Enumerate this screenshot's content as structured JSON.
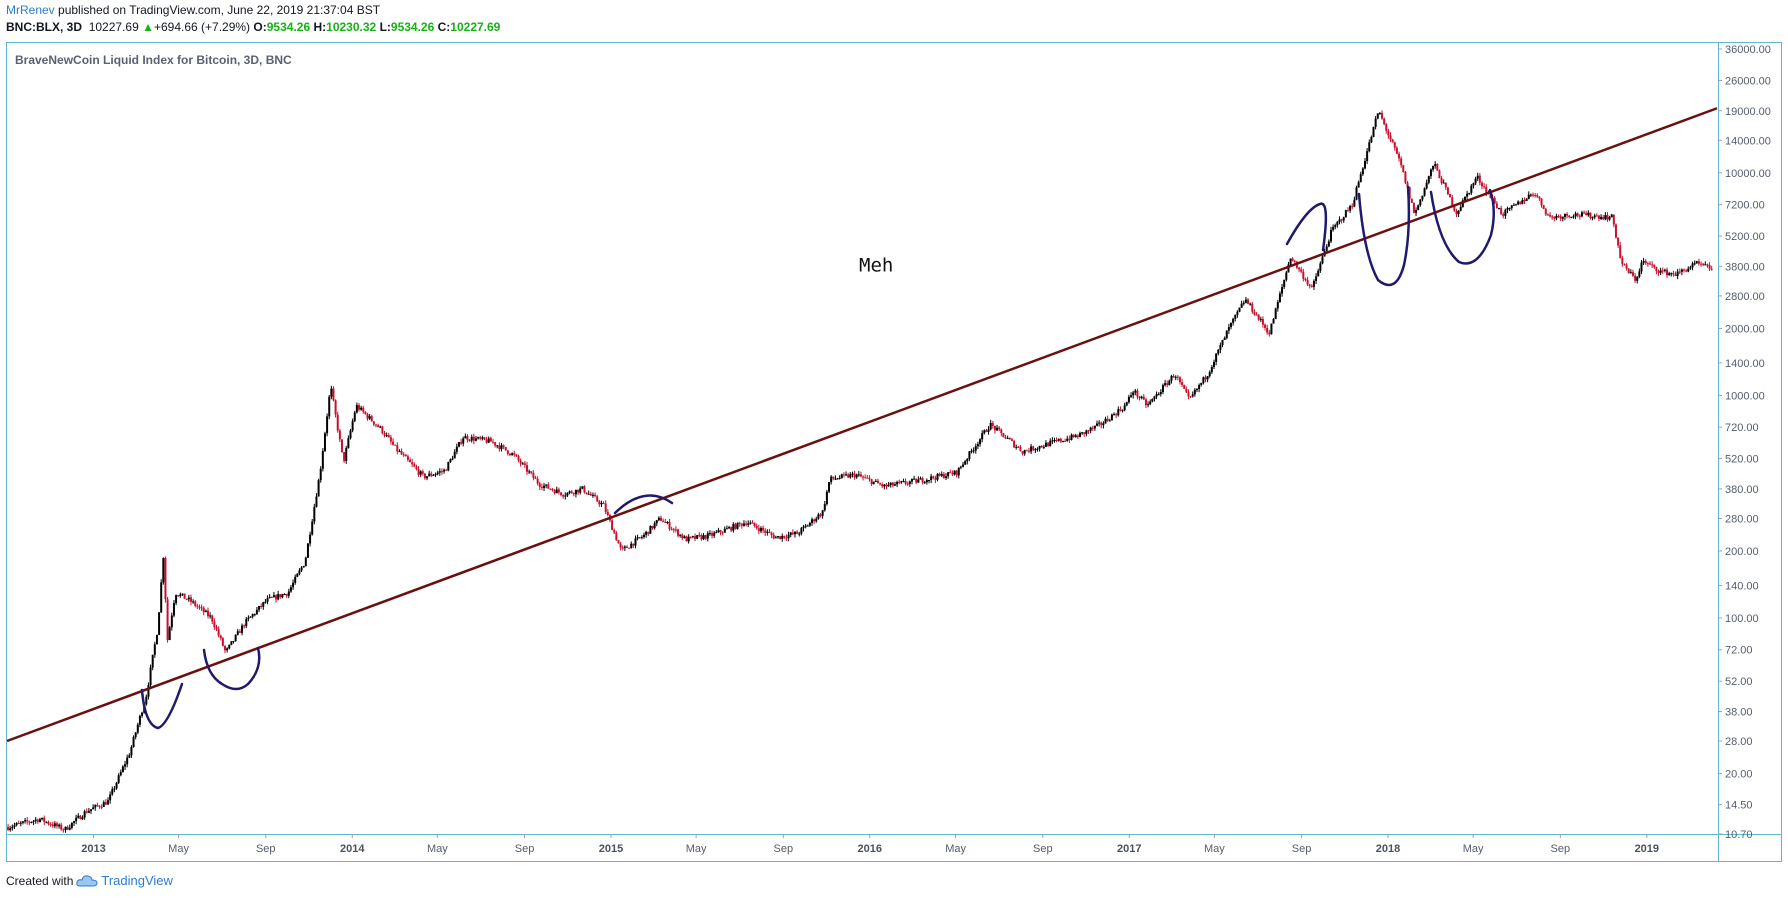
{
  "header": {
    "author": "MrRenev",
    "published": "published on TradingView.com, June 22, 2019 21:37:04 BST",
    "symbol": "BNC:BLX, 3D",
    "last": "10227.69",
    "change": "+694.66 (+7.29%)",
    "open_label": "O:",
    "open": "9534.26",
    "high_label": "H:",
    "high": "10230.32",
    "low_label": "L:",
    "low": "9534.26",
    "close_label": "C:",
    "close": "10227.69"
  },
  "footer": {
    "created_with": "Created with",
    "brand": "TradingView"
  },
  "colors": {
    "up": "#000000",
    "down": "#c8102e",
    "trendline": "#6b1010",
    "annotation": "#1f1a6b",
    "border": "#5fb8cc",
    "positive": "#16b216",
    "brand": "#2e7bcf"
  },
  "chart_data": {
    "type": "line",
    "title": "BraveNewCoin Liquid Index for Bitcoin, 3D, BNC",
    "yscale": "log",
    "ylim": [
      10.7,
      36000
    ],
    "xlim": [
      "2012-09-01",
      "2019-04-10"
    ],
    "y_ticks": [
      "36000.00",
      "26000.00",
      "19000.00",
      "14000.00",
      "10000.00",
      "7200.00",
      "5200.00",
      "3800.00",
      "2800.00",
      "2000.00",
      "1400.00",
      "1000.00",
      "720.00",
      "520.00",
      "380.00",
      "280.00",
      "200.00",
      "140.00",
      "100.00",
      "72.00",
      "52.00",
      "38.00",
      "28.00",
      "20.00",
      "14.50",
      "10.70"
    ],
    "x_ticks": [
      {
        "label": "2013",
        "date": "2013-01-01",
        "year": true
      },
      {
        "label": "May",
        "date": "2013-05-01"
      },
      {
        "label": "Sep",
        "date": "2013-09-01"
      },
      {
        "label": "2014",
        "date": "2014-01-01",
        "year": true
      },
      {
        "label": "May",
        "date": "2014-05-01"
      },
      {
        "label": "Sep",
        "date": "2014-09-01"
      },
      {
        "label": "2015",
        "date": "2015-01-01",
        "year": true
      },
      {
        "label": "May",
        "date": "2015-05-01"
      },
      {
        "label": "Sep",
        "date": "2015-09-01"
      },
      {
        "label": "2016",
        "date": "2016-01-01",
        "year": true
      },
      {
        "label": "May",
        "date": "2016-05-01"
      },
      {
        "label": "Sep",
        "date": "2016-09-01"
      },
      {
        "label": "2017",
        "date": "2017-01-01",
        "year": true
      },
      {
        "label": "May",
        "date": "2017-05-01"
      },
      {
        "label": "Sep",
        "date": "2017-09-01"
      },
      {
        "label": "2018",
        "date": "2018-01-01",
        "year": true
      },
      {
        "label": "May",
        "date": "2018-05-01"
      },
      {
        "label": "Sep",
        "date": "2018-09-01"
      },
      {
        "label": "2019",
        "date": "2019-01-01",
        "year": true
      }
    ],
    "price_path": [
      [
        "2012-09-01",
        11.5
      ],
      [
        "2012-10-15",
        12.5
      ],
      [
        "2012-11-20",
        11.2
      ],
      [
        "2012-12-20",
        13.5
      ],
      [
        "2013-01-20",
        15
      ],
      [
        "2013-02-20",
        25
      ],
      [
        "2013-03-15",
        45
      ],
      [
        "2013-03-31",
        90
      ],
      [
        "2013-04-08",
        190
      ],
      [
        "2013-04-14",
        80
      ],
      [
        "2013-04-25",
        130
      ],
      [
        "2013-05-15",
        120
      ],
      [
        "2013-06-15",
        100
      ],
      [
        "2013-07-05",
        70
      ],
      [
        "2013-08-01",
        95
      ],
      [
        "2013-09-01",
        120
      ],
      [
        "2013-10-01",
        130
      ],
      [
        "2013-10-25",
        180
      ],
      [
        "2013-11-15",
        450
      ],
      [
        "2013-11-30",
        1100
      ],
      [
        "2013-12-18",
        500
      ],
      [
        "2014-01-05",
        900
      ],
      [
        "2014-02-10",
        700
      ],
      [
        "2014-03-01",
        580
      ],
      [
        "2014-04-10",
        430
      ],
      [
        "2014-05-10",
        460
      ],
      [
        "2014-06-05",
        650
      ],
      [
        "2014-07-15",
        620
      ],
      [
        "2014-08-15",
        540
      ],
      [
        "2014-09-20",
        400
      ],
      [
        "2014-10-25",
        360
      ],
      [
        "2014-11-20",
        380
      ],
      [
        "2014-12-20",
        320
      ],
      [
        "2015-01-14",
        200
      ],
      [
        "2015-02-15",
        235
      ],
      [
        "2015-03-10",
        280
      ],
      [
        "2015-04-15",
        225
      ],
      [
        "2015-05-20",
        235
      ],
      [
        "2015-07-10",
        270
      ],
      [
        "2015-08-20",
        230
      ],
      [
        "2015-09-20",
        240
      ],
      [
        "2015-10-25",
        300
      ],
      [
        "2015-11-04",
        420
      ],
      [
        "2015-12-10",
        440
      ],
      [
        "2016-01-20",
        390
      ],
      [
        "2016-03-10",
        415
      ],
      [
        "2016-05-01",
        450
      ],
      [
        "2016-06-17",
        740
      ],
      [
        "2016-08-02",
        560
      ],
      [
        "2016-09-10",
        610
      ],
      [
        "2016-10-20",
        660
      ],
      [
        "2016-11-20",
        740
      ],
      [
        "2016-12-25",
        900
      ],
      [
        "2017-01-05",
        1050
      ],
      [
        "2017-01-25",
        900
      ],
      [
        "2017-03-05",
        1250
      ],
      [
        "2017-03-25",
        950
      ],
      [
        "2017-04-20",
        1250
      ],
      [
        "2017-05-20",
        2000
      ],
      [
        "2017-06-12",
        2700
      ],
      [
        "2017-07-16",
        1900
      ],
      [
        "2017-08-15",
        4200
      ],
      [
        "2017-09-14",
        3000
      ],
      [
        "2017-10-12",
        5500
      ],
      [
        "2017-11-10",
        7200
      ],
      [
        "2017-12-17",
        19000
      ],
      [
        "2018-01-17",
        11000
      ],
      [
        "2018-02-06",
        6500
      ],
      [
        "2018-03-05",
        11000
      ],
      [
        "2018-04-06",
        6600
      ],
      [
        "2018-05-05",
        9600
      ],
      [
        "2018-06-10",
        6500
      ],
      [
        "2018-07-25",
        8200
      ],
      [
        "2018-08-15",
        6300
      ],
      [
        "2018-09-15",
        6500
      ],
      [
        "2018-10-20",
        6400
      ],
      [
        "2018-11-12",
        6300
      ],
      [
        "2018-11-25",
        3900
      ],
      [
        "2018-12-15",
        3300
      ],
      [
        "2018-12-24",
        4000
      ],
      [
        "2019-01-20",
        3600
      ],
      [
        "2019-02-10",
        3500
      ],
      [
        "2019-03-10",
        3900
      ],
      [
        "2019-04-02",
        3700
      ]
    ],
    "trendline": [
      [
        "2012-09-01",
        28
      ],
      [
        "2019-04-10",
        19500
      ]
    ],
    "annotations": [
      {
        "text": "Meh",
        "date": "2016-01-10",
        "price": 3600
      }
    ]
  }
}
